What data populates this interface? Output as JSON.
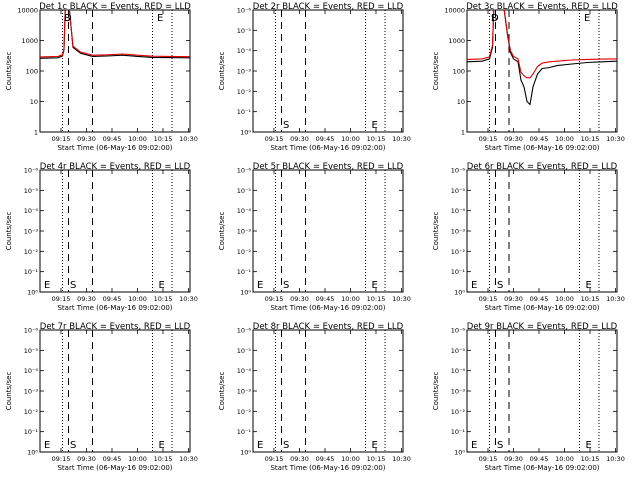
{
  "chart_data": [
    {
      "type": "line",
      "title": "Det 1c BLACK = Events, RED = LLD",
      "xlabel": "Start Time (06-May-16 09:02:00)",
      "ylabel": "Counts/sec",
      "x_ticks": [
        "09:15",
        "09:30",
        "09:45",
        "10:00",
        "10:15",
        "10:30"
      ],
      "y_tick_labels": [
        "1",
        "10",
        "100",
        "1000",
        "10000"
      ],
      "yscale": "log",
      "ylim": [
        1,
        10000
      ],
      "xlim": [
        0,
        100
      ],
      "markers": {
        "D": "D",
        "S": "S",
        "E": "E"
      },
      "dashed_x": [
        19,
        35
      ],
      "dotted_x": [
        15,
        75,
        88
      ],
      "label_x": {
        "D": 16,
        "S": 16,
        "E": 78
      },
      "series": [
        {
          "color": "#000000",
          "points": [
            [
              0,
              260
            ],
            [
              12,
              270
            ],
            [
              15,
              310
            ],
            [
              16,
              500
            ],
            [
              17,
              20000
            ],
            [
              19,
              20000
            ],
            [
              22,
              600
            ],
            [
              27,
              380
            ],
            [
              35,
              300
            ],
            [
              45,
              310
            ],
            [
              55,
              330
            ],
            [
              65,
              300
            ],
            [
              75,
              280
            ],
            [
              85,
              275
            ],
            [
              100,
              270
            ]
          ]
        },
        {
          "color": "#e00000",
          "points": [
            [
              0,
              290
            ],
            [
              12,
              300
            ],
            [
              15,
              340
            ],
            [
              16,
              550
            ],
            [
              17,
              20000
            ],
            [
              19,
              20000
            ],
            [
              22,
              650
            ],
            [
              27,
              420
            ],
            [
              35,
              330
            ],
            [
              45,
              340
            ],
            [
              55,
              360
            ],
            [
              65,
              330
            ],
            [
              75,
              305
            ],
            [
              85,
              300
            ],
            [
              100,
              295
            ]
          ]
        }
      ]
    },
    {
      "type": "line",
      "title": "Det 2r BLACK = Events, RED = LLD",
      "xlabel": "Start Time (06-May-16 09:02:00)",
      "ylabel": "Counts/sec",
      "x_ticks": [
        "09:15",
        "09:30",
        "09:45",
        "10:00",
        "10:15",
        "10:30"
      ],
      "y_tick_labels": [
        "10⁰",
        "10⁻¹",
        "10⁻²",
        "10⁻³",
        "10⁻⁴",
        "10⁻⁵",
        "10⁻⁶"
      ],
      "yscale": "log-reversed",
      "markers": {
        "D": "",
        "S": "S",
        "E": "E"
      },
      "dashed_x": [
        19,
        35
      ],
      "dotted_x": [
        15,
        75,
        88
      ],
      "label_x": {
        "D": 0,
        "S": 20,
        "E": 79
      },
      "series": []
    },
    {
      "type": "line",
      "title": "Det 3c BLACK = Events, RED = LLD",
      "xlabel": "Start Time (06-May-16 09:02:00)",
      "ylabel": "Counts/sec",
      "x_ticks": [
        "09:15",
        "09:30",
        "09:45",
        "10:00",
        "10:15",
        "10:30"
      ],
      "y_tick_labels": [
        "1",
        "10",
        "100",
        "1000",
        "10000"
      ],
      "yscale": "log",
      "ylim": [
        1,
        10000
      ],
      "xlim": [
        0,
        100
      ],
      "markers": {
        "D": "D",
        "S": "S",
        "E": "E"
      },
      "dashed_x": [
        19,
        28
      ],
      "dotted_x": [
        15,
        75,
        88
      ],
      "label_x": {
        "D": 16,
        "S": 16,
        "E": 78
      },
      "series": [
        {
          "color": "#000000",
          "points": [
            [
              0,
              200
            ],
            [
              10,
              210
            ],
            [
              15,
              250
            ],
            [
              17,
              600
            ],
            [
              18,
              20000
            ],
            [
              24,
              20000
            ],
            [
              27,
              1500
            ],
            [
              29,
              400
            ],
            [
              31,
              250
            ],
            [
              34,
              200
            ],
            [
              36,
              50
            ],
            [
              38,
              30
            ],
            [
              40,
              10
            ],
            [
              42,
              8
            ],
            [
              44,
              30
            ],
            [
              47,
              80
            ],
            [
              50,
              120
            ],
            [
              55,
              130
            ],
            [
              60,
              150
            ],
            [
              70,
              170
            ],
            [
              80,
              190
            ],
            [
              90,
              200
            ],
            [
              100,
              210
            ]
          ]
        },
        {
          "color": "#e00000",
          "points": [
            [
              0,
              240
            ],
            [
              10,
              250
            ],
            [
              15,
              290
            ],
            [
              17,
              700
            ],
            [
              18,
              20000
            ],
            [
              24,
              20000
            ],
            [
              27,
              1700
            ],
            [
              29,
              460
            ],
            [
              31,
              300
            ],
            [
              34,
              250
            ],
            [
              36,
              90
            ],
            [
              38,
              70
            ],
            [
              40,
              60
            ],
            [
              42,
              60
            ],
            [
              44,
              80
            ],
            [
              47,
              140
            ],
            [
              50,
              180
            ],
            [
              55,
              200
            ],
            [
              60,
              210
            ],
            [
              70,
              230
            ],
            [
              80,
              240
            ],
            [
              90,
              245
            ],
            [
              100,
              250
            ]
          ]
        }
      ]
    },
    {
      "type": "line",
      "title": "Det 4r BLACK = Events, RED = LLD",
      "xlabel": "Start Time (06-May-16 09:02:00)",
      "ylabel": "Counts/sec",
      "x_ticks": [
        "09:15",
        "09:30",
        "09:45",
        "10:00",
        "10:15",
        "10:30"
      ],
      "y_tick_labels": [
        "10⁰",
        "10⁻¹",
        "10⁻²",
        "10⁻³",
        "10⁻⁴",
        "10⁻⁵",
        "10⁻⁶"
      ],
      "yscale": "log-reversed",
      "markers": {
        "D": "E",
        "S": "S",
        "E": "E"
      },
      "dashed_x": [
        19,
        35
      ],
      "dotted_x": [
        15,
        75,
        88
      ],
      "label_x": {
        "D": 0,
        "S": 20,
        "E": 79
      },
      "series": []
    },
    {
      "type": "line",
      "title": "Det 5r BLACK = Events, RED = LLD",
      "xlabel": "Start Time (06-May-16 09:02:00)",
      "ylabel": "Counts/sec",
      "x_ticks": [
        "09:15",
        "09:30",
        "09:45",
        "10:00",
        "10:15",
        "10:30"
      ],
      "y_tick_labels": [
        "10⁰",
        "10⁻¹",
        "10⁻²",
        "10⁻³",
        "10⁻⁴",
        "10⁻⁵",
        "10⁻⁶"
      ],
      "yscale": "log-reversed",
      "markers": {
        "D": "E",
        "S": "S",
        "E": "E"
      },
      "dashed_x": [
        19,
        35
      ],
      "dotted_x": [
        15,
        75,
        88
      ],
      "label_x": {
        "D": 0,
        "S": 20,
        "E": 79
      },
      "series": []
    },
    {
      "type": "line",
      "title": "Det 6r BLACK = Events, RED = LLD",
      "xlabel": "Start Time (06-May-16 09:02:00)",
      "ylabel": "Counts/sec",
      "x_ticks": [
        "09:15",
        "09:30",
        "09:45",
        "10:00",
        "10:15",
        "10:30"
      ],
      "y_tick_labels": [
        "10⁰",
        "10⁻¹",
        "10⁻²",
        "10⁻³",
        "10⁻⁴",
        "10⁻⁵",
        "10⁻⁶"
      ],
      "yscale": "log-reversed",
      "markers": {
        "D": "E",
        "S": "S",
        "E": "E"
      },
      "dashed_x": [
        19,
        28
      ],
      "dotted_x": [
        15,
        75,
        88
      ],
      "label_x": {
        "D": 0,
        "S": 20,
        "E": 79
      },
      "series": []
    },
    {
      "type": "line",
      "title": "Det 7r BLACK = Events, RED = LLD",
      "xlabel": "Start Time (06-May-16 09:02:00)",
      "ylabel": "Counts/sec",
      "x_ticks": [
        "09:15",
        "09:30",
        "09:45",
        "10:00",
        "10:15",
        "10:30"
      ],
      "y_tick_labels": [
        "10⁰",
        "10⁻¹",
        "10⁻²",
        "10⁻³",
        "10⁻⁴",
        "10⁻⁵",
        "10⁻⁶"
      ],
      "yscale": "log-reversed",
      "markers": {
        "D": "E",
        "S": "S",
        "E": "E"
      },
      "dashed_x": [
        19,
        35
      ],
      "dotted_x": [
        15,
        75,
        88
      ],
      "label_x": {
        "D": 0,
        "S": 20,
        "E": 79
      },
      "series": []
    },
    {
      "type": "line",
      "title": "Det 8r BLACK = Events, RED = LLD",
      "xlabel": "Start Time (06-May-16 09:02:00)",
      "ylabel": "Counts/sec",
      "x_ticks": [
        "09:15",
        "09:30",
        "09:45",
        "10:00",
        "10:15",
        "10:30"
      ],
      "y_tick_labels": [
        "10⁰",
        "10⁻¹",
        "10⁻²",
        "10⁻³",
        "10⁻⁴",
        "10⁻⁵",
        "10⁻⁶"
      ],
      "yscale": "log-reversed",
      "markers": {
        "D": "E",
        "S": "S",
        "E": "E"
      },
      "dashed_x": [
        19,
        35
      ],
      "dotted_x": [
        15,
        75,
        88
      ],
      "label_x": {
        "D": 0,
        "S": 20,
        "E": 79
      },
      "series": []
    },
    {
      "type": "line",
      "title": "Det 9r BLACK = Events, RED = LLD",
      "xlabel": "Start Time (06-May-16 09:02:00)",
      "ylabel": "Counts/sec",
      "x_ticks": [
        "09:15",
        "09:30",
        "09:45",
        "10:00",
        "10:15",
        "10:30"
      ],
      "y_tick_labels": [
        "10⁰",
        "10⁻¹",
        "10⁻²",
        "10⁻³",
        "10⁻⁴",
        "10⁻⁵",
        "10⁻⁶"
      ],
      "yscale": "log-reversed",
      "markers": {
        "D": "E",
        "S": "S",
        "E": "E"
      },
      "dashed_x": [
        19,
        28
      ],
      "dotted_x": [
        15,
        75,
        88
      ],
      "label_x": {
        "D": 0,
        "S": 20,
        "E": 79
      },
      "series": []
    }
  ]
}
